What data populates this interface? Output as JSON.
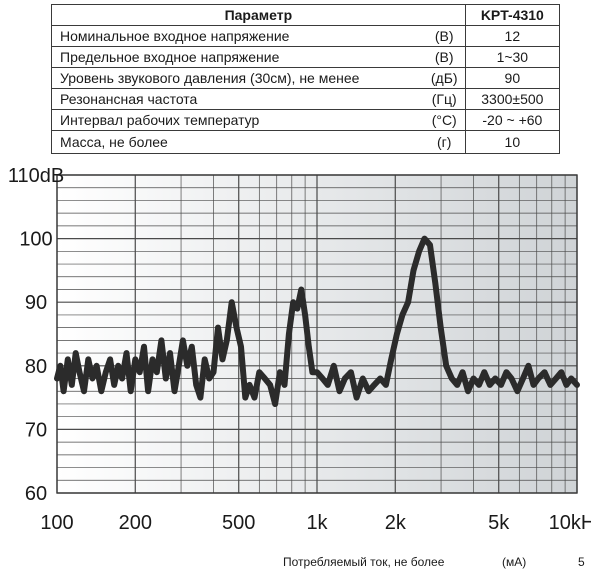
{
  "table": {
    "header": {
      "param": "Параметр",
      "value": "KPT-4310"
    },
    "rows": [
      {
        "param": "Номинальное входное напряжение",
        "unit": "(В)",
        "value": "12"
      },
      {
        "param": "Предельное входное напряжение",
        "unit": "(В)",
        "value": "1~30"
      },
      {
        "param": "Уровень звукового давления (30см), не менее",
        "unit": "(дБ)",
        "value": "90"
      },
      {
        "param": "Резонансная частота",
        "unit": "(Гц)",
        "value": "3300±500"
      },
      {
        "param": "Интервал рабочих температур",
        "unit": "(°С)",
        "value": "-20 ~ +60"
      },
      {
        "param": "Масса, не более",
        "unit": "(г)",
        "value": "10"
      }
    ]
  },
  "footer": {
    "label": "Потребляемый ток, не более",
    "unit": "(мА)",
    "value": "5"
  },
  "chart_data": {
    "type": "line",
    "xscale": "log",
    "xlim": [
      100,
      10000
    ],
    "ylim": [
      60,
      110
    ],
    "xticklabels": [
      {
        "x": 100,
        "label": "100"
      },
      {
        "x": 200,
        "label": "200"
      },
      {
        "x": 500,
        "label": "500"
      },
      {
        "x": 1000,
        "label": "1k"
      },
      {
        "x": 2000,
        "label": "2k"
      },
      {
        "x": 5000,
        "label": "5k"
      },
      {
        "x": 10000,
        "label": "10kHz"
      }
    ],
    "yticklabels": [
      {
        "y": 110,
        "label": "110dB"
      },
      {
        "y": 100,
        "label": "100"
      },
      {
        "y": 90,
        "label": "90"
      },
      {
        "y": 80,
        "label": "80"
      },
      {
        "y": 70,
        "label": "70"
      },
      {
        "y": 60,
        "label": "60"
      }
    ],
    "grid": true,
    "colors": {
      "line": "#2b2b2b",
      "grid": "#4a4a4a",
      "bg_light": "#ffffff",
      "bg_dark": "#cfd3d6"
    },
    "series": [
      {
        "x": [
          100,
          103,
          106,
          110,
          114,
          118,
          122,
          127,
          132,
          137,
          142,
          148,
          154,
          160,
          166,
          172,
          178,
          185,
          192,
          200,
          208,
          216,
          224,
          233,
          242,
          252,
          262,
          272,
          283,
          294,
          305,
          317,
          330,
          343,
          356,
          370,
          385,
          400,
          416,
          433,
          450,
          470,
          490,
          510,
          530,
          550,
          575,
          600,
          630,
          660,
          690,
          720,
          750,
          780,
          810,
          840,
          870,
          900,
          930,
          960,
          1000,
          1050,
          1100,
          1160,
          1220,
          1280,
          1350,
          1420,
          1500,
          1580,
          1660,
          1750,
          1840,
          1930,
          2030,
          2130,
          2240,
          2350,
          2470,
          2590,
          2720,
          2850,
          2990,
          3140,
          3300,
          3460,
          3630,
          3810,
          4000,
          4200,
          4400,
          4620,
          4850,
          5100,
          5350,
          5600,
          5900,
          6200,
          6500,
          6800,
          7100,
          7500,
          7900,
          8300,
          8700,
          9100,
          9500,
          10000
        ],
        "y": [
          78,
          80,
          76,
          81,
          77,
          82,
          79,
          76,
          81,
          78,
          80,
          76,
          79,
          81,
          77,
          80,
          78,
          82,
          76,
          81,
          79,
          83,
          76,
          81,
          79,
          84,
          78,
          82,
          76,
          80,
          84,
          80,
          83,
          77,
          75,
          81,
          78,
          79,
          86,
          81,
          84,
          90,
          86,
          83,
          75,
          77,
          75,
          79,
          78,
          77,
          74,
          79,
          77,
          85,
          90,
          89,
          92,
          88,
          83,
          79,
          79,
          78,
          77,
          80,
          76,
          78,
          79,
          75,
          78,
          76,
          77,
          78,
          77,
          81,
          85,
          88,
          90,
          95,
          98,
          100,
          99,
          93,
          86,
          80,
          78,
          77,
          79,
          76,
          78,
          77,
          79,
          77,
          78,
          77,
          79,
          78,
          76,
          78,
          80,
          77,
          78,
          79,
          77,
          78,
          79,
          77,
          78,
          77
        ]
      }
    ]
  }
}
